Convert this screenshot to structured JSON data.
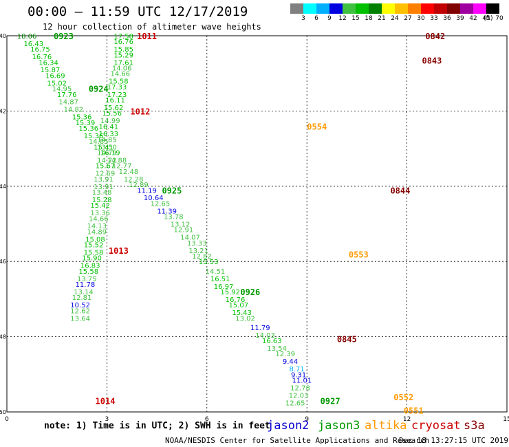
{
  "header": {
    "title": "00:00 – 11:59 UTC 12/17/2019",
    "subtitle": "12 hour collection of altimeter wave heights"
  },
  "colorbar": {
    "labels": [
      "3",
      "6",
      "9",
      "12",
      "15",
      "18",
      "21",
      "24",
      "27",
      "30",
      "33",
      "36",
      "39",
      "42",
      "45",
      "70"
    ],
    "unit": "(ft)",
    "colors": [
      "#808080",
      "#00ffff",
      "#00b0ff",
      "#0000e0",
      "#40c040",
      "#00c000",
      "#008000",
      "#ffff00",
      "#ffc000",
      "#ff8000",
      "#ff0000",
      "#c00000",
      "#800000",
      "#a000a0",
      "#ff00ff",
      "#000000"
    ]
  },
  "axes": {
    "x_ticks": [
      "0",
      "3",
      "6",
      "9",
      "12",
      "15"
    ],
    "y_ticks": [
      "-40",
      "-42",
      "-44",
      "-46",
      "-48",
      "-50"
    ]
  },
  "footer": {
    "note": "note: 1) Time is in UTC; 2) SWH is in feet",
    "satellites": [
      {
        "name": "jason2",
        "color": "#0000cc"
      },
      {
        "name": "jason3",
        "color": "#009900"
      },
      {
        "name": "altika",
        "color": "#ff9900"
      },
      {
        "name": "cryosat",
        "color": "#cc0000"
      },
      {
        "name": "s3a",
        "color": "#880000"
      }
    ],
    "credit": "NOAA/NESDIS Center for Satellite Applications and Research",
    "timestamp": "Dec 18 13:27:15 UTC 2019"
  },
  "chart_data": {
    "type": "scatter",
    "title": "00:00 – 11:59 UTC 12/17/2019",
    "xlim": [
      0,
      15
    ],
    "ylim": [
      -50,
      -40
    ],
    "grid": true,
    "time_labels": [
      {
        "x": 1.7,
        "y": -40.0,
        "text": "0923",
        "color": "#009900"
      },
      {
        "x": 4.2,
        "y": -40.0,
        "text": "1011",
        "color": "#cc0000"
      },
      {
        "x": 2.75,
        "y": -41.4,
        "text": "0924",
        "color": "#009900"
      },
      {
        "x": 4.0,
        "y": -42.0,
        "text": "1012",
        "color": "#cc0000"
      },
      {
        "x": 4.95,
        "y": -44.1,
        "text": "0925",
        "color": "#009900"
      },
      {
        "x": 3.35,
        "y": -45.7,
        "text": "1013",
        "color": "#cc0000"
      },
      {
        "x": 7.3,
        "y": -46.8,
        "text": "0926",
        "color": "#009900"
      },
      {
        "x": 2.95,
        "y": -49.7,
        "text": "1014",
        "color": "#cc0000"
      },
      {
        "x": 9.7,
        "y": -49.7,
        "text": "0927",
        "color": "#009900"
      },
      {
        "x": 12.85,
        "y": -40.0,
        "text": "0842",
        "color": "#880000"
      },
      {
        "x": 12.75,
        "y": -40.65,
        "text": "0843",
        "color": "#880000"
      },
      {
        "x": 11.8,
        "y": -44.1,
        "text": "0844",
        "color": "#880000"
      },
      {
        "x": 10.2,
        "y": -48.05,
        "text": "0845",
        "color": "#880000"
      },
      {
        "x": 9.3,
        "y": -42.4,
        "text": "0554",
        "color": "#ff9900"
      },
      {
        "x": 10.55,
        "y": -45.8,
        "text": "0553",
        "color": "#ff9900"
      },
      {
        "x": 11.9,
        "y": -49.6,
        "text": "0552",
        "color": "#ff9900"
      },
      {
        "x": 12.2,
        "y": -49.95,
        "text": "0551",
        "color": "#ff9900"
      }
    ],
    "series": [
      {
        "name": "jason3 pass A",
        "values": [
          [
            0.6,
            -40.0,
            "18.06"
          ],
          [
            0.8,
            -40.2,
            "16.43"
          ],
          [
            1.0,
            -40.35,
            "16.75"
          ],
          [
            1.05,
            -40.55,
            "16.76"
          ],
          [
            1.25,
            -40.7,
            "16.34"
          ],
          [
            1.3,
            -40.9,
            "15.87"
          ],
          [
            1.45,
            -41.05,
            "16.69"
          ],
          [
            1.5,
            -41.25,
            "15.02"
          ],
          [
            1.65,
            -41.4,
            "14.95"
          ],
          [
            1.8,
            -41.55,
            "17.76"
          ],
          [
            1.85,
            -41.75,
            "14.87"
          ],
          [
            2.0,
            -41.95,
            "14.82"
          ],
          [
            2.25,
            -42.15,
            "15.36"
          ],
          [
            2.35,
            -42.3,
            "15.39"
          ],
          [
            2.45,
            -42.45,
            "15.36"
          ],
          [
            2.6,
            -42.65,
            "15.36"
          ],
          [
            2.75,
            -42.8,
            "14.85"
          ],
          [
            2.9,
            -42.95,
            "15.41"
          ],
          [
            3.1,
            -43.1,
            "16.19"
          ],
          [
            3.3,
            -43.3,
            "14.88"
          ],
          [
            3.45,
            -43.45,
            "12.77"
          ],
          [
            3.65,
            -43.6,
            "12.48"
          ],
          [
            3.8,
            -43.8,
            "12.28"
          ],
          [
            3.95,
            -43.95,
            "12.89"
          ],
          [
            4.2,
            -44.1,
            "11.19"
          ],
          [
            4.4,
            -44.3,
            "10.64"
          ],
          [
            4.6,
            -44.45,
            "12.65"
          ],
          [
            4.8,
            -44.65,
            "11.39"
          ],
          [
            5.0,
            -44.8,
            "13.78"
          ],
          [
            5.2,
            -45.0,
            "13.12"
          ],
          [
            5.3,
            -45.15,
            "12.91"
          ],
          [
            5.5,
            -45.35,
            "14.07"
          ],
          [
            5.7,
            -45.5,
            "13.33"
          ],
          [
            5.75,
            -45.7,
            "13.21"
          ],
          [
            5.85,
            -45.85,
            "12.82"
          ],
          [
            6.05,
            -46.0,
            "15.53"
          ],
          [
            6.25,
            -46.25,
            "14.51"
          ],
          [
            6.4,
            -46.45,
            "16.51"
          ],
          [
            6.5,
            -46.65,
            "16.97"
          ],
          [
            6.7,
            -46.8,
            "15.92"
          ],
          [
            6.85,
            -47.0,
            "16.76"
          ],
          [
            6.95,
            -47.15,
            "15.07"
          ],
          [
            7.05,
            -47.35,
            "15.43"
          ],
          [
            7.15,
            -47.5,
            "13.02"
          ],
          [
            7.6,
            -47.75,
            "11.79"
          ],
          [
            7.75,
            -47.95,
            "14.03"
          ],
          [
            7.95,
            -48.1,
            "16.63"
          ],
          [
            8.1,
            -48.3,
            "13.54"
          ],
          [
            8.35,
            -48.45,
            "12.39"
          ],
          [
            8.5,
            -48.65,
            "9.44"
          ],
          [
            8.7,
            -48.85,
            "8.71"
          ],
          [
            8.75,
            -49.0,
            "9.31"
          ],
          [
            8.85,
            -49.15,
            "11.01"
          ],
          [
            8.8,
            -49.35,
            "12.78"
          ],
          [
            8.75,
            -49.55,
            "12.03"
          ],
          [
            8.65,
            -49.75,
            "12.65"
          ]
        ]
      },
      {
        "name": "jason3 pass B",
        "values": [
          [
            3.5,
            -40.0,
            "17.58"
          ],
          [
            3.5,
            -40.15,
            "16.76"
          ],
          [
            3.5,
            -40.35,
            "15.85"
          ],
          [
            3.5,
            -40.5,
            "15.29"
          ],
          [
            3.5,
            -40.7,
            "17.61"
          ],
          [
            3.45,
            -40.85,
            "14.06"
          ],
          [
            3.4,
            -41.0,
            "14.66"
          ],
          [
            3.35,
            -41.2,
            "15.58"
          ],
          [
            3.3,
            -41.35,
            "17.33"
          ],
          [
            3.3,
            -41.55,
            "17.23"
          ],
          [
            3.25,
            -41.7,
            "16.11"
          ],
          [
            3.2,
            -41.9,
            "15.62"
          ],
          [
            3.15,
            -42.05,
            "15.56"
          ],
          [
            3.1,
            -42.25,
            "14.99"
          ],
          [
            3.05,
            -42.4,
            "16.41"
          ],
          [
            3.05,
            -42.6,
            "16.33"
          ],
          [
            3.0,
            -42.75,
            "14.85"
          ],
          [
            3.0,
            -42.95,
            "13.50"
          ],
          [
            3.0,
            -43.1,
            "14.79"
          ],
          [
            3.0,
            -43.3,
            "14.72"
          ],
          [
            2.95,
            -43.45,
            "15.67"
          ],
          [
            2.95,
            -43.65,
            "12.69"
          ],
          [
            2.9,
            -43.8,
            "13.91"
          ],
          [
            2.9,
            -44.0,
            "13.91"
          ],
          [
            2.85,
            -44.15,
            "13.48"
          ],
          [
            2.85,
            -44.35,
            "15.28"
          ],
          [
            2.8,
            -44.5,
            "15.42"
          ],
          [
            2.8,
            -44.7,
            "13.36"
          ],
          [
            2.75,
            -44.85,
            "14.66"
          ],
          [
            2.7,
            -45.05,
            "14.13"
          ],
          [
            2.7,
            -45.2,
            "14.89"
          ],
          [
            2.65,
            -45.4,
            "15.08"
          ],
          [
            2.6,
            -45.55,
            "15.52"
          ],
          [
            2.6,
            -45.75,
            "15.58"
          ],
          [
            2.55,
            -45.9,
            "15.90"
          ],
          [
            2.5,
            -46.1,
            "16.83"
          ],
          [
            2.45,
            -46.25,
            "15.58"
          ],
          [
            2.4,
            -46.45,
            "13.75"
          ],
          [
            2.35,
            -46.6,
            "11.78"
          ],
          [
            2.3,
            -46.8,
            "13.14"
          ],
          [
            2.25,
            -46.95,
            "12.81"
          ],
          [
            2.2,
            -47.15,
            "10.52"
          ],
          [
            2.2,
            -47.3,
            "12.62"
          ],
          [
            2.2,
            -47.5,
            "13.64"
          ]
        ]
      }
    ]
  }
}
